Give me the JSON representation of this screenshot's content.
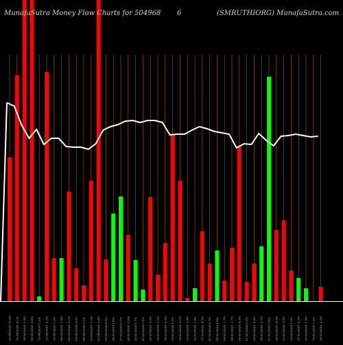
{
  "chart_data": {
    "type": "bar",
    "title_left": "MunafaSutra  Money Flow  Charts for 504968",
    "title_mid": "6",
    "title_right": "(SMRUTHIORG)  MunafaSutra.com",
    "categories": [
      "22-04-2024 79.3%",
      "19-04-2024 -0.1%",
      "18-04-2024 -1.4%",
      "16-04-2024 -2.6%",
      "15-04-2024 1.3%",
      "12-04-2024 -2.2%",
      "10-04-2024 1.3%",
      "09-04-2024 -1.4%",
      "08-04-2024 -0.1%",
      "05-04-2024 2.0%",
      "04-04-2024 0.1%",
      "03-04-2024 -1.2%",
      "02-04-2024 -0.8%",
      "01-04-2024 4.9%",
      "28-03-2024 1.8%",
      "27-03-2024 0.7%",
      "26-03-2024 -1.6%",
      "22-03-2024 1.5%",
      "21-03-2024 0.1%",
      "20-03-2024 -3.8%",
      "19-03-2024 -1.2%",
      "18-03-2024 -0.9%",
      "15-03-2024 1.5%",
      "14-03-2024 -3.1%",
      "13-03-2024 -2.8%",
      "12-03-2024 -1.4%",
      "11-03-2024 -4.5%",
      "07-03-2024 0.7%",
      "06-03-2024 1.6%",
      "05-03-2024 -1.7%",
      "04-03-2024 -1.7%",
      "02-03-2024 -0.3%",
      "01-03-2024 0.3%",
      "29-02-2024 -2.8%",
      "28-02-2024 -2.7%",
      "27-02-2024 3.8%",
      "26-02-2024 -4.5%",
      "23-02-2024 -2.9%",
      "22-02-2024 1.5%",
      "21-02-2024 -2.5%",
      "20-02-2024 -1.8%",
      "19-02-2024 1.3%",
      "16-02-2024 -1.2%"
    ],
    "bar_colors": [
      "red",
      "red",
      "red",
      "red",
      "green",
      "red",
      "red",
      "green",
      "red",
      "red",
      "red",
      "red",
      "red",
      "red",
      "green",
      "green",
      "red",
      "green",
      "green",
      "red",
      "red",
      "red",
      "red",
      "red",
      "red",
      "green",
      "red",
      "red",
      "green",
      "red",
      "red",
      "red",
      "red",
      "red",
      "green",
      "green",
      "red",
      "red",
      "red",
      "green",
      "green",
      "green",
      "red"
    ],
    "values": [
      210,
      330,
      440,
      440,
      7,
      335,
      63,
      63,
      160,
      48,
      23,
      176,
      440,
      61,
      128,
      153,
      97,
      60,
      17,
      152,
      39,
      85,
      243,
      176,
      5,
      19,
      102,
      55,
      74,
      30,
      78,
      227,
      28,
      55,
      80,
      328,
      104,
      118,
      45,
      34,
      19,
      0,
      21
    ],
    "line": [
      290,
      285,
      257,
      238,
      251,
      229,
      238,
      238,
      226,
      225,
      225,
      222,
      230,
      250,
      255,
      258,
      263,
      264,
      261,
      264,
      264,
      261,
      243,
      244,
      244,
      250,
      255,
      252,
      248,
      246,
      244,
      224,
      230,
      229,
      245,
      235,
      227,
      241,
      242,
      244,
      242,
      240,
      241
    ],
    "ylim": [
      0,
      440
    ],
    "colors": {
      "red": "#ff0000",
      "green": "#00ff00",
      "line": "#ffffff",
      "grid": "#b25a00",
      "axis": "#ffffff"
    }
  }
}
